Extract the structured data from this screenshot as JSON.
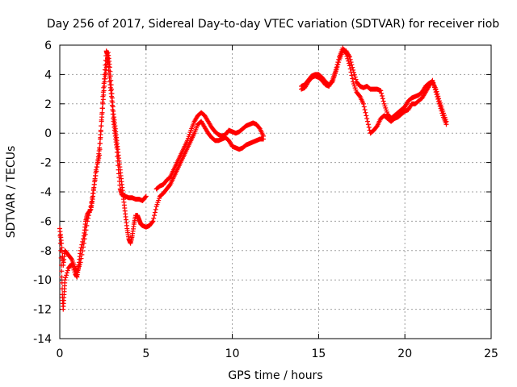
{
  "chart_data": {
    "type": "scatter",
    "title": "Day 256 of 2017, Sidereal Day-to-day VTEC variation (SDTVAR) for receiver riob",
    "xlabel": "GPS time / hours",
    "ylabel": "SDTVAR / TECUs",
    "xlim": [
      0,
      25
    ],
    "ylim": [
      -14,
      6
    ],
    "xticks": [
      0,
      5,
      10,
      15,
      20,
      25
    ],
    "yticks": [
      -14,
      -12,
      -10,
      -8,
      -6,
      -4,
      -2,
      0,
      2,
      4,
      6
    ],
    "grid": true,
    "marker": "plus",
    "color": "#ff0000",
    "series": [
      {
        "segments": [
          [
            [
              0.0,
              -6.5
            ],
            [
              0.1,
              -7.5
            ],
            [
              0.2,
              -9.0
            ],
            [
              0.3,
              -8.0
            ],
            [
              0.5,
              -8.3
            ],
            [
              0.7,
              -8.6
            ],
            [
              0.9,
              -9.2
            ],
            [
              1.0,
              -9.5
            ],
            [
              1.2,
              -8.8
            ],
            [
              1.4,
              -7.5
            ],
            [
              1.6,
              -6.0
            ],
            [
              1.8,
              -5.0
            ],
            [
              2.0,
              -3.5
            ],
            [
              2.1,
              -2.5
            ],
            [
              2.3,
              -1.5
            ],
            [
              2.4,
              0.5
            ],
            [
              2.5,
              2.5
            ],
            [
              2.6,
              4.0
            ],
            [
              2.7,
              5.6
            ],
            [
              2.75,
              5.4
            ],
            [
              2.8,
              4.8
            ],
            [
              2.9,
              3.5
            ],
            [
              3.0,
              2.5
            ],
            [
              3.1,
              1.0
            ],
            [
              3.2,
              0.0
            ],
            [
              3.3,
              -1.0
            ],
            [
              3.4,
              -2.5
            ],
            [
              3.5,
              -3.8
            ],
            [
              3.6,
              -4.2
            ],
            [
              3.8,
              -4.3
            ],
            [
              4.0,
              -4.4
            ],
            [
              4.2,
              -4.4
            ],
            [
              4.4,
              -4.5
            ],
            [
              4.6,
              -4.5
            ],
            [
              4.8,
              -4.6
            ],
            [
              5.0,
              -4.3
            ]
          ],
          [
            [
              0.0,
              -6.5
            ],
            [
              0.1,
              -9.0
            ],
            [
              0.15,
              -11.0
            ],
            [
              0.2,
              -12.0
            ],
            [
              0.25,
              -11.0
            ],
            [
              0.3,
              -10.0
            ],
            [
              0.5,
              -9.2
            ],
            [
              0.7,
              -8.9
            ],
            [
              0.9,
              -9.6
            ],
            [
              1.0,
              -9.8
            ],
            [
              1.1,
              -9.0
            ],
            [
              1.2,
              -8.0
            ],
            [
              1.4,
              -7.0
            ],
            [
              1.5,
              -6.0
            ],
            [
              1.6,
              -5.5
            ],
            [
              1.8,
              -5.2
            ],
            [
              1.9,
              -4.5
            ],
            [
              2.0,
              -3.5
            ],
            [
              2.2,
              -2.0
            ],
            [
              2.3,
              -1.0
            ],
            [
              2.4,
              0.5
            ],
            [
              2.5,
              2.0
            ],
            [
              2.6,
              3.5
            ],
            [
              2.7,
              4.5
            ],
            [
              2.8,
              5.5
            ],
            [
              2.9,
              4.5
            ],
            [
              3.0,
              3.0
            ],
            [
              3.1,
              1.5
            ],
            [
              3.2,
              0.5
            ],
            [
              3.3,
              -0.5
            ],
            [
              3.4,
              -1.5
            ],
            [
              3.5,
              -2.5
            ],
            [
              3.6,
              -3.5
            ],
            [
              3.7,
              -4.5
            ],
            [
              3.8,
              -5.5
            ],
            [
              3.9,
              -6.5
            ],
            [
              4.0,
              -7.2
            ],
            [
              4.1,
              -7.5
            ],
            [
              4.2,
              -7.0
            ],
            [
              4.3,
              -6.2
            ],
            [
              4.4,
              -5.6
            ],
            [
              4.5,
              -5.6
            ],
            [
              4.6,
              -5.9
            ],
            [
              4.7,
              -6.2
            ],
            [
              4.8,
              -6.3
            ],
            [
              5.0,
              -6.4
            ],
            [
              5.2,
              -6.3
            ],
            [
              5.4,
              -6.0
            ],
            [
              5.6,
              -5.0
            ],
            [
              5.8,
              -4.3
            ],
            [
              6.0,
              -4.1
            ],
            [
              6.2,
              -3.8
            ],
            [
              6.4,
              -3.5
            ],
            [
              6.6,
              -3.0
            ],
            [
              6.8,
              -2.5
            ],
            [
              7.0,
              -2.0
            ],
            [
              7.2,
              -1.5
            ],
            [
              7.4,
              -1.0
            ],
            [
              7.6,
              -0.5
            ],
            [
              7.8,
              0.0
            ],
            [
              8.0,
              0.6
            ],
            [
              8.2,
              0.8
            ],
            [
              8.4,
              0.4
            ],
            [
              8.6,
              0.0
            ],
            [
              8.8,
              -0.3
            ],
            [
              9.0,
              -0.5
            ],
            [
              9.2,
              -0.5
            ],
            [
              9.4,
              -0.4
            ],
            [
              9.6,
              -0.3
            ],
            [
              9.8,
              -0.5
            ],
            [
              10.0,
              -0.9
            ],
            [
              10.2,
              -1.0
            ],
            [
              10.4,
              -1.1
            ],
            [
              10.6,
              -1.0
            ],
            [
              10.8,
              -0.8
            ],
            [
              11.0,
              -0.7
            ],
            [
              11.2,
              -0.6
            ],
            [
              11.4,
              -0.5
            ],
            [
              11.6,
              -0.4
            ],
            [
              11.8,
              -0.4
            ]
          ],
          [
            [
              5.6,
              -3.8
            ],
            [
              5.8,
              -3.6
            ],
            [
              6.0,
              -3.5
            ],
            [
              6.2,
              -3.2
            ],
            [
              6.4,
              -3.0
            ],
            [
              6.6,
              -2.5
            ],
            [
              6.8,
              -2.0
            ],
            [
              7.0,
              -1.5
            ],
            [
              7.2,
              -1.0
            ],
            [
              7.4,
              -0.5
            ],
            [
              7.6,
              0.2
            ],
            [
              7.8,
              0.8
            ],
            [
              8.0,
              1.2
            ],
            [
              8.2,
              1.4
            ],
            [
              8.4,
              1.2
            ],
            [
              8.6,
              0.8
            ],
            [
              8.8,
              0.4
            ],
            [
              9.0,
              0.1
            ],
            [
              9.2,
              -0.1
            ],
            [
              9.4,
              -0.2
            ],
            [
              9.6,
              -0.1
            ],
            [
              9.8,
              0.2
            ],
            [
              10.0,
              0.1
            ],
            [
              10.2,
              0.0
            ],
            [
              10.4,
              0.1
            ],
            [
              10.6,
              0.3
            ],
            [
              10.8,
              0.5
            ],
            [
              11.0,
              0.6
            ],
            [
              11.2,
              0.7
            ],
            [
              11.4,
              0.6
            ],
            [
              11.6,
              0.3
            ],
            [
              11.8,
              -0.2
            ]
          ],
          [
            [
              14.0,
              3.2
            ],
            [
              14.2,
              3.3
            ],
            [
              14.4,
              3.6
            ],
            [
              14.6,
              3.9
            ],
            [
              14.8,
              4.0
            ],
            [
              15.0,
              4.0
            ],
            [
              15.2,
              3.8
            ],
            [
              15.4,
              3.5
            ],
            [
              15.6,
              3.3
            ],
            [
              15.8,
              3.5
            ],
            [
              16.0,
              4.2
            ],
            [
              16.2,
              5.0
            ],
            [
              16.4,
              5.6
            ],
            [
              16.6,
              5.6
            ],
            [
              16.8,
              5.2
            ],
            [
              17.0,
              4.3
            ],
            [
              17.2,
              3.5
            ],
            [
              17.4,
              3.2
            ],
            [
              17.6,
              3.1
            ],
            [
              17.8,
              3.2
            ],
            [
              18.0,
              3.0
            ],
            [
              18.2,
              3.0
            ],
            [
              18.4,
              3.0
            ],
            [
              18.6,
              2.9
            ],
            [
              18.8,
              2.0
            ],
            [
              19.0,
              1.3
            ],
            [
              19.2,
              1.0
            ],
            [
              19.4,
              1.2
            ],
            [
              19.6,
              1.4
            ],
            [
              19.8,
              1.6
            ],
            [
              20.0,
              1.8
            ],
            [
              20.2,
              2.2
            ],
            [
              20.4,
              2.4
            ],
            [
              20.6,
              2.5
            ],
            [
              20.8,
              2.6
            ],
            [
              21.0,
              2.8
            ],
            [
              21.2,
              3.2
            ],
            [
              21.4,
              3.4
            ],
            [
              21.6,
              3.5
            ],
            [
              21.8,
              3.0
            ],
            [
              22.0,
              2.2
            ],
            [
              22.2,
              1.5
            ],
            [
              22.4,
              0.8
            ]
          ],
          [
            [
              14.0,
              3.0
            ],
            [
              14.2,
              3.1
            ],
            [
              14.4,
              3.5
            ],
            [
              14.6,
              3.8
            ],
            [
              14.8,
              3.9
            ],
            [
              15.0,
              3.8
            ],
            [
              15.2,
              3.6
            ],
            [
              15.4,
              3.3
            ],
            [
              15.6,
              3.2
            ],
            [
              15.8,
              3.6
            ],
            [
              16.0,
              4.3
            ],
            [
              16.2,
              5.2
            ],
            [
              16.4,
              5.8
            ],
            [
              16.6,
              5.4
            ],
            [
              16.8,
              4.6
            ],
            [
              17.0,
              3.5
            ],
            [
              17.2,
              2.8
            ],
            [
              17.4,
              2.5
            ],
            [
              17.6,
              2.0
            ],
            [
              17.8,
              1.0
            ],
            [
              18.0,
              0.0
            ],
            [
              18.2,
              0.2
            ],
            [
              18.4,
              0.5
            ],
            [
              18.6,
              1.0
            ],
            [
              18.8,
              1.2
            ],
            [
              19.0,
              1.0
            ],
            [
              19.2,
              0.8
            ],
            [
              19.4,
              1.0
            ],
            [
              19.6,
              1.1
            ],
            [
              19.8,
              1.3
            ],
            [
              20.0,
              1.5
            ],
            [
              20.2,
              1.6
            ],
            [
              20.4,
              2.0
            ],
            [
              20.6,
              2.0
            ],
            [
              20.8,
              2.2
            ],
            [
              21.0,
              2.4
            ],
            [
              21.2,
              2.8
            ],
            [
              21.4,
              3.2
            ],
            [
              21.6,
              3.6
            ],
            [
              21.8,
              2.8
            ],
            [
              22.0,
              2.0
            ],
            [
              22.2,
              1.2
            ],
            [
              22.4,
              0.6
            ]
          ]
        ]
      }
    ]
  }
}
